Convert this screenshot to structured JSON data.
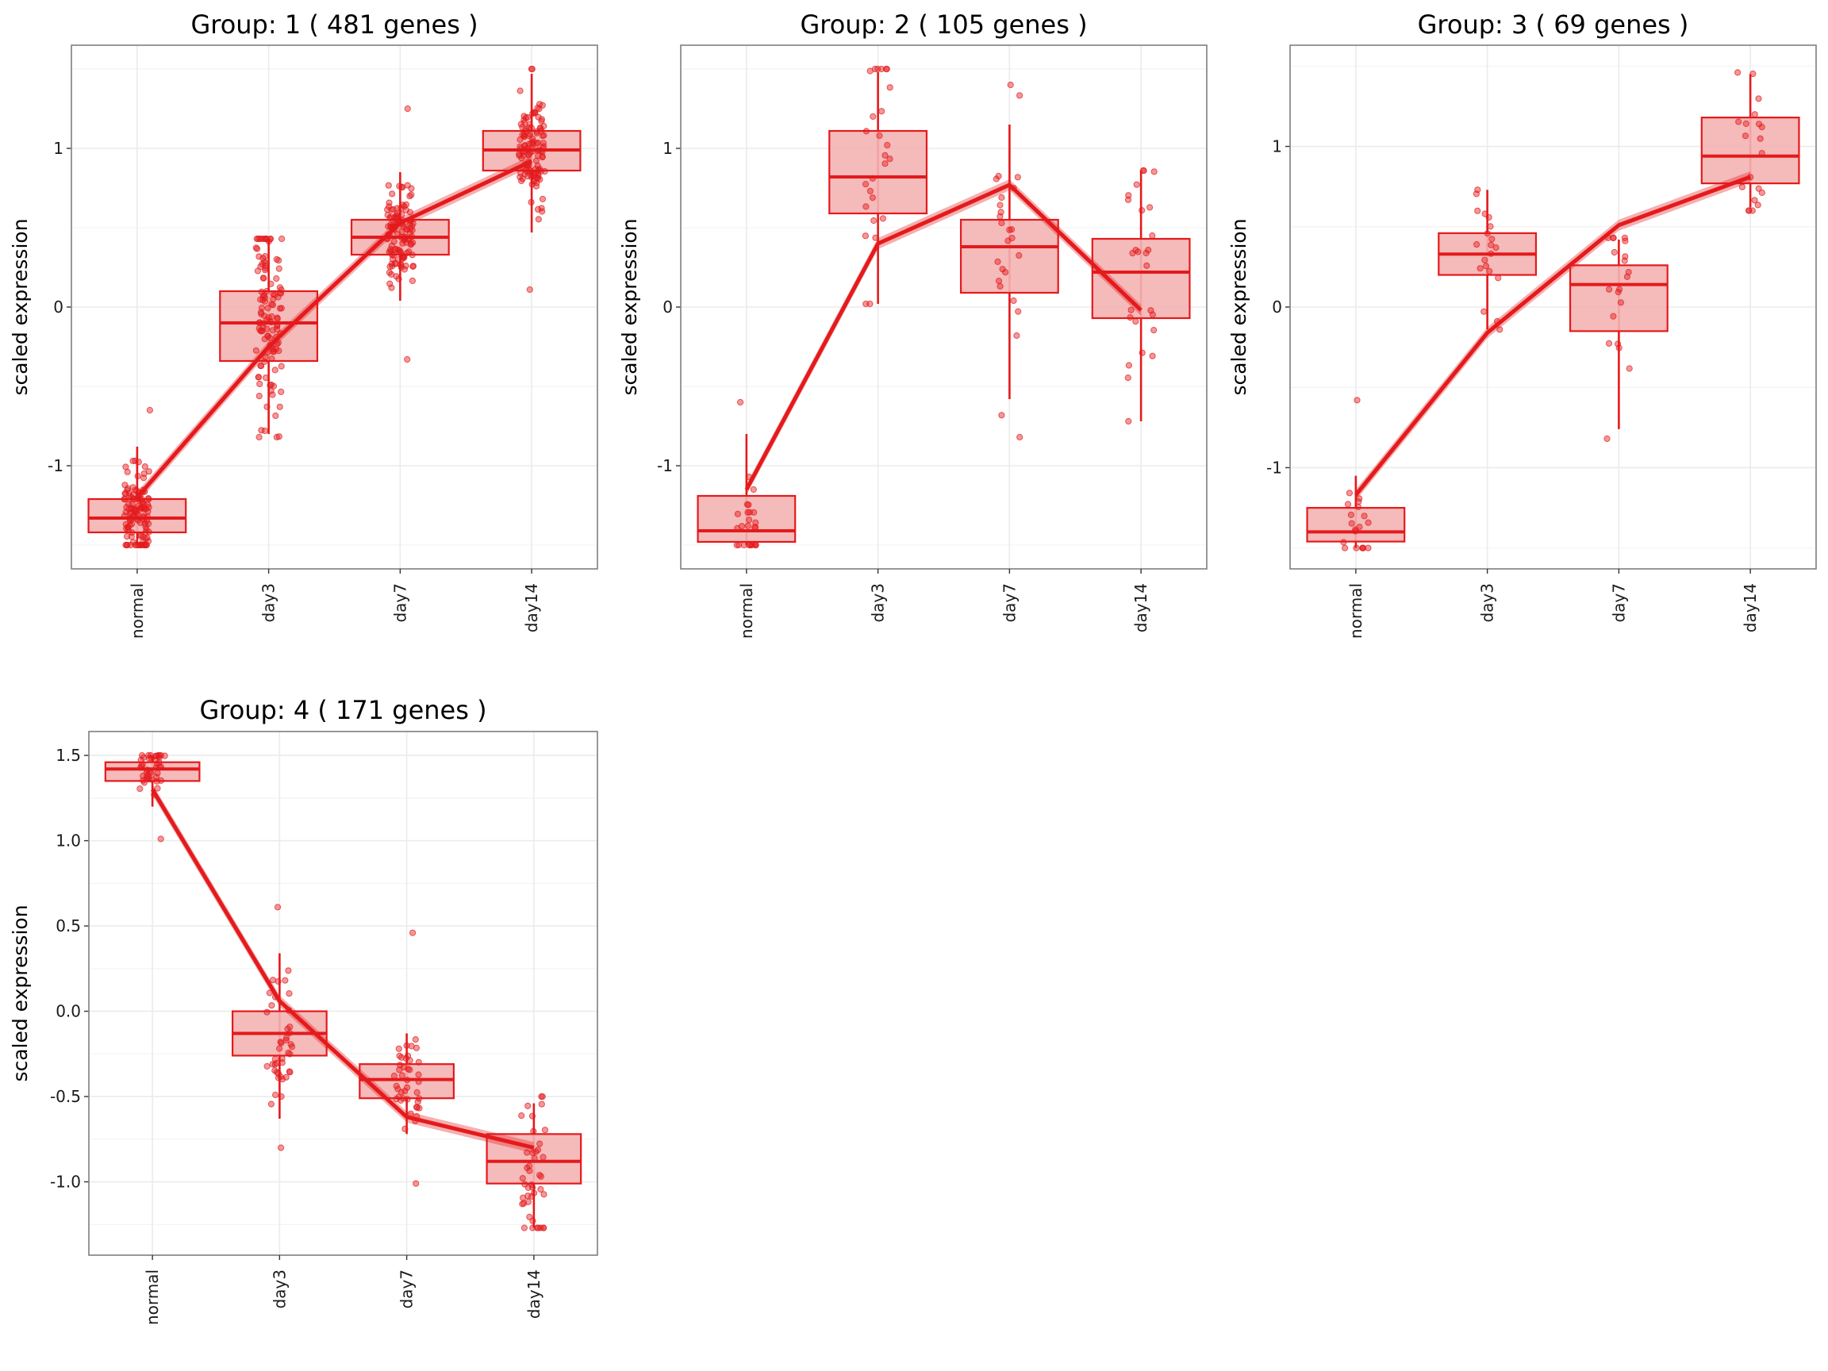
{
  "colors": {
    "accent": "#e41a1c",
    "box_fill": "#f4b2b3",
    "grid": "#ebebeb",
    "frame": "#7f7f7f"
  },
  "chart_data": [
    {
      "type": "box",
      "title": "Group: 1 ( 481  genes )",
      "ylabel": "scaled expression",
      "categories": [
        "normal",
        "day3",
        "day7",
        "day14"
      ],
      "ylim": [
        -1.65,
        1.65
      ],
      "yticks": [
        -1,
        0,
        1
      ],
      "ytick_labels": [
        "-1",
        "0",
        "1"
      ],
      "box": [
        {
          "q1": -1.42,
          "median": -1.33,
          "q3": -1.21,
          "lo": -1.5,
          "hi": -0.88,
          "pmin": -1.5,
          "pmax": -0.65
        },
        {
          "q1": -0.34,
          "median": -0.1,
          "q3": 0.1,
          "lo": -0.8,
          "hi": 0.42,
          "pmin": -0.82,
          "pmax": 0.43
        },
        {
          "q1": 0.33,
          "median": 0.44,
          "q3": 0.55,
          "lo": 0.04,
          "hi": 0.85,
          "pmin": -0.33,
          "pmax": 1.25
        },
        {
          "q1": 0.86,
          "median": 0.99,
          "q3": 1.11,
          "lo": 0.47,
          "hi": 1.47,
          "pmin": 0.11,
          "pmax": 1.5
        }
      ],
      "trend": [
        -1.2,
        -0.25,
        0.53,
        0.92
      ],
      "n_points": 481
    },
    {
      "type": "box",
      "title": "Group: 2 ( 105  genes )",
      "ylabel": "scaled expression",
      "categories": [
        "normal",
        "day3",
        "day7",
        "day14"
      ],
      "ylim": [
        -1.65,
        1.65
      ],
      "yticks": [
        -1,
        0,
        1
      ],
      "ytick_labels": [
        "-1",
        "0",
        "1"
      ],
      "box": [
        {
          "q1": -1.48,
          "median": -1.41,
          "q3": -1.19,
          "lo": -1.5,
          "hi": -0.8,
          "pmin": -1.5,
          "pmax": -0.6
        },
        {
          "q1": 0.59,
          "median": 0.82,
          "q3": 1.11,
          "lo": 0.02,
          "hi": 1.48,
          "pmin": 0.02,
          "pmax": 1.5
        },
        {
          "q1": 0.09,
          "median": 0.38,
          "q3": 0.55,
          "lo": -0.58,
          "hi": 1.15,
          "pmin": -0.82,
          "pmax": 1.4
        },
        {
          "q1": -0.07,
          "median": 0.22,
          "q3": 0.43,
          "lo": -0.72,
          "hi": 0.86,
          "pmin": -0.72,
          "pmax": 0.86
        }
      ],
      "trend": [
        -1.15,
        0.4,
        0.77,
        -0.02
      ],
      "n_points": 105
    },
    {
      "type": "box",
      "title": "Group: 3 ( 69  genes )",
      "ylabel": "scaled expression",
      "categories": [
        "normal",
        "day3",
        "day7",
        "day14"
      ],
      "ylim": [
        -1.63,
        1.63
      ],
      "yticks": [
        -1,
        0,
        1
      ],
      "ytick_labels": [
        "-1",
        "0",
        "1"
      ],
      "box": [
        {
          "q1": -1.46,
          "median": -1.4,
          "q3": -1.25,
          "lo": -1.5,
          "hi": -1.05,
          "pmin": -1.5,
          "pmax": -0.58
        },
        {
          "q1": 0.2,
          "median": 0.33,
          "q3": 0.46,
          "lo": -0.14,
          "hi": 0.73,
          "pmin": -0.14,
          "pmax": 0.73
        },
        {
          "q1": -0.15,
          "median": 0.14,
          "q3": 0.26,
          "lo": -0.76,
          "hi": 0.42,
          "pmin": -0.82,
          "pmax": 0.43
        },
        {
          "q1": 0.77,
          "median": 0.94,
          "q3": 1.18,
          "lo": 0.62,
          "hi": 1.45,
          "pmin": 0.6,
          "pmax": 1.46
        }
      ],
      "trend": [
        -1.17,
        -0.16,
        0.51,
        0.81
      ],
      "n_points": 69
    },
    {
      "type": "box",
      "title": "Group: 4 ( 171  genes )",
      "ylabel": "scaled expression",
      "categories": [
        "normal",
        "day3",
        "day7",
        "day14"
      ],
      "ylim": [
        -1.43,
        1.64
      ],
      "yticks": [
        -1.0,
        -0.5,
        0.0,
        0.5,
        1.0,
        1.5
      ],
      "ytick_labels": [
        "-1.0",
        "-0.5",
        "0.0",
        "0.5",
        "1.0",
        "1.5"
      ],
      "box": [
        {
          "q1": 1.35,
          "median": 1.42,
          "q3": 1.46,
          "lo": 1.2,
          "hi": 1.5,
          "pmin": 1.01,
          "pmax": 1.5
        },
        {
          "q1": -0.26,
          "median": -0.13,
          "q3": 0.0,
          "lo": -0.63,
          "hi": 0.34,
          "pmin": -0.8,
          "pmax": 0.61
        },
        {
          "q1": -0.51,
          "median": -0.4,
          "q3": -0.31,
          "lo": -0.72,
          "hi": -0.13,
          "pmin": -1.01,
          "pmax": 0.46
        },
        {
          "q1": -1.01,
          "median": -0.88,
          "q3": -0.72,
          "lo": -1.27,
          "hi": -0.54,
          "pmin": -1.27,
          "pmax": -0.5
        }
      ],
      "trend": [
        1.3,
        0.06,
        -0.62,
        -0.8
      ],
      "n_points": 171
    }
  ]
}
